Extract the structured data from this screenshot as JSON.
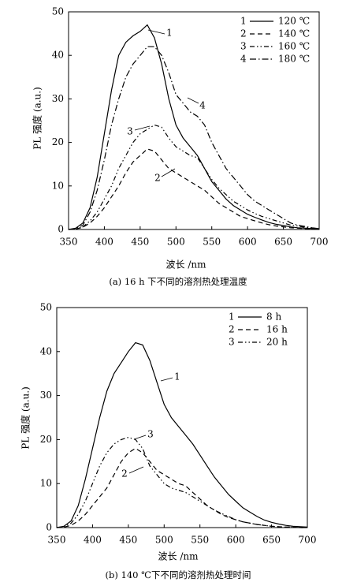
{
  "chart_data": [
    {
      "type": "line",
      "caption": "(a) 16 h 下不同的溶剂热处理温度",
      "x_label": "波长 /nm",
      "y_label": "PL 强度 (a.u.)",
      "legend": "upper right",
      "x": [
        350,
        360,
        370,
        380,
        390,
        400,
        410,
        420,
        430,
        440,
        450,
        460,
        470,
        480,
        490,
        500,
        510,
        520,
        530,
        540,
        550,
        560,
        570,
        580,
        590,
        600,
        610,
        620,
        630,
        640,
        650,
        660,
        670,
        680,
        690,
        700
      ],
      "xlim": [
        350,
        700
      ],
      "xticks": [
        350,
        400,
        450,
        500,
        550,
        600,
        650,
        700
      ],
      "ylim": [
        0,
        50
      ],
      "yticks": [
        0,
        10,
        20,
        30,
        40,
        50
      ],
      "series": [
        {
          "label": "1",
          "name": "120 ℃",
          "color": "#000000",
          "style": "solid",
          "values": [
            0,
            0.3,
            1.5,
            5,
            12,
            22,
            32,
            40,
            43,
            44.5,
            45.5,
            47,
            44,
            38,
            30,
            24,
            21,
            19,
            17,
            14,
            11,
            9,
            7,
            5.5,
            4.5,
            3.5,
            2.8,
            2.2,
            1.6,
            1.2,
            0.9,
            0.6,
            0.4,
            0.3,
            0.2,
            0.1
          ]
        },
        {
          "label": "2",
          "name": "140 ℃",
          "color": "#000000",
          "style": "dashed",
          "values": [
            0,
            0.1,
            0.5,
            1.5,
            3,
            5,
            7.5,
            10,
            13,
            15.5,
            17,
            18.5,
            18,
            16,
            14,
            13,
            12,
            11,
            10,
            9,
            7.5,
            6,
            5,
            4,
            3,
            2.5,
            2,
            1.5,
            1.1,
            0.8,
            0.6,
            0.4,
            0.3,
            0.2,
            0.1,
            0.1
          ]
        },
        {
          "label": "3",
          "name": "160 ℃",
          "color": "#000000",
          "style": "dashdotdot",
          "values": [
            0,
            0.1,
            0.6,
            2,
            4,
            7,
            10,
            14,
            17,
            20,
            22,
            23,
            24,
            23.5,
            21,
            19,
            18,
            17,
            16.5,
            14,
            11.5,
            9.5,
            8,
            6.5,
            5.5,
            4.5,
            3.7,
            3,
            2.5,
            2,
            1.5,
            1,
            0.8,
            0.5,
            0.3,
            0.2
          ]
        },
        {
          "label": "4",
          "name": "180 ℃",
          "color": "#000000",
          "style": "dashdot",
          "values": [
            0,
            0.2,
            1,
            4,
            9,
            16,
            24,
            30,
            35,
            38,
            40,
            42,
            42,
            40,
            36,
            31,
            29,
            27,
            26,
            24,
            20,
            17,
            14,
            12,
            10,
            8,
            6.5,
            5.5,
            4.5,
            3.5,
            2.5,
            1.5,
            1,
            0.7,
            0.4,
            0.2
          ]
        }
      ]
    },
    {
      "type": "line",
      "caption": "(b) 140 ℃下不同的溶剂热处理时间",
      "x_label": "波长 /nm",
      "y_label": "PL 强度 (a.u.)",
      "legend": "upper right",
      "x": [
        350,
        360,
        370,
        380,
        390,
        400,
        410,
        420,
        430,
        440,
        450,
        460,
        470,
        480,
        490,
        500,
        510,
        520,
        530,
        540,
        550,
        560,
        570,
        580,
        590,
        600,
        610,
        620,
        630,
        640,
        650,
        660,
        670,
        680,
        690,
        700
      ],
      "xlim": [
        350,
        700
      ],
      "xticks": [
        350,
        400,
        450,
        500,
        550,
        600,
        650,
        700
      ],
      "ylim": [
        0,
        50
      ],
      "yticks": [
        0,
        10,
        20,
        30,
        40,
        50
      ],
      "series": [
        {
          "label": "1",
          "name": "8 h",
          "color": "#000000",
          "style": "solid",
          "values": [
            0,
            0.3,
            1.5,
            5,
            11,
            18,
            25,
            31,
            35,
            37.5,
            40,
            42,
            41.5,
            38,
            33,
            28,
            25,
            23,
            21,
            19,
            16.5,
            14,
            11.5,
            9.5,
            7.5,
            6,
            4.5,
            3.5,
            2.5,
            1.7,
            1.2,
            0.8,
            0.5,
            0.3,
            0.2,
            0.1
          ]
        },
        {
          "label": "2",
          "name": "16 h",
          "color": "#000000",
          "style": "dashed",
          "values": [
            0,
            0.1,
            0.5,
            1.5,
            3,
            5,
            7,
            9,
            12,
            15,
            17,
            18,
            17,
            15,
            13,
            12,
            11,
            10,
            9.5,
            8,
            6.5,
            5,
            4,
            3,
            2.3,
            1.8,
            1.3,
            1,
            0.7,
            0.5,
            0.3,
            0.2,
            0.1,
            0.1,
            0,
            0
          ]
        },
        {
          "label": "3",
          "name": "20 h",
          "color": "#000000",
          "style": "dashdotdot",
          "values": [
            0,
            0.2,
            1,
            3,
            6,
            10,
            14,
            17,
            19,
            20,
            20.5,
            20,
            18,
            14,
            12,
            10,
            9,
            8.5,
            8,
            7,
            6,
            5,
            4,
            3.2,
            2.5,
            1.8,
            1.3,
            1,
            0.7,
            0.5,
            0.3,
            0.2,
            0.1,
            0.1,
            0,
            0
          ]
        }
      ]
    }
  ]
}
